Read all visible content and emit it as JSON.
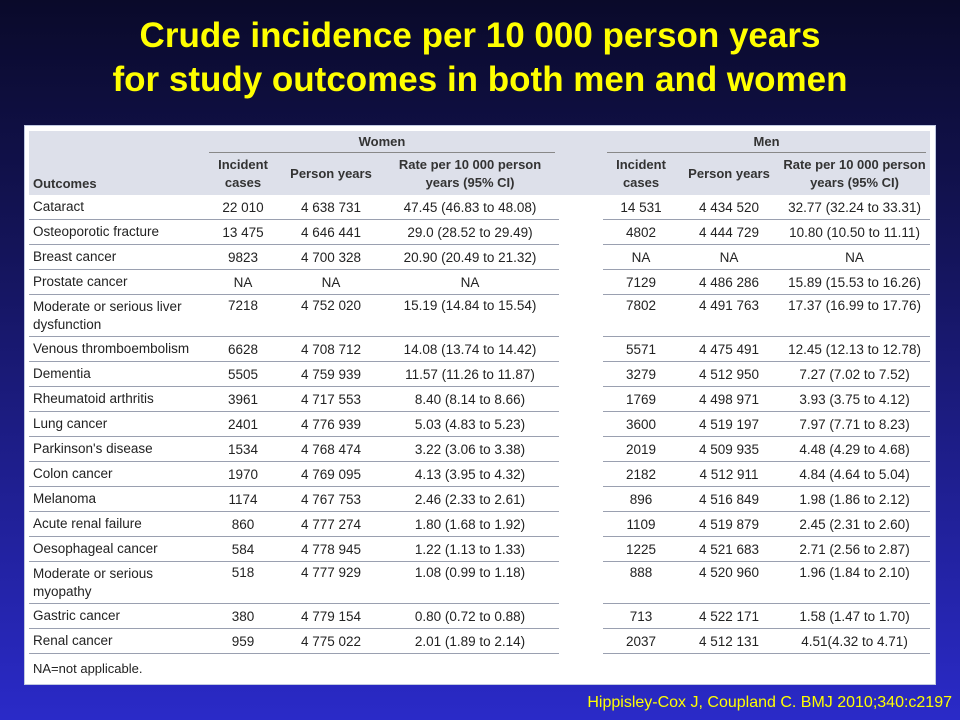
{
  "title_line1": "Crude incidence per 10 000 person years",
  "title_line2": "for study outcomes in both men and women",
  "table": {
    "group_women": "Women",
    "group_men": "Men",
    "col_outcomes": "Outcomes",
    "col_incident": "Incident cases",
    "col_person": "Person years",
    "col_rate": "Rate per 10 000 person years (95% CI)",
    "col_rate_men": "Rate per 10 000 person years (95% CI)",
    "rows": [
      {
        "outcome": "Cataract",
        "w_cases": "22 010",
        "w_py": "4 638 731",
        "w_rate": "47.45 (46.83 to 48.08)",
        "m_cases": "14 531",
        "m_py": "4 434 520",
        "m_rate": "32.77 (32.24 to 33.31)"
      },
      {
        "outcome": "Osteoporotic fracture",
        "w_cases": "13 475",
        "w_py": "4 646 441",
        "w_rate": "29.0 (28.52 to 29.49)",
        "m_cases": "4802",
        "m_py": "4 444 729",
        "m_rate": "10.80 (10.50 to 11.11)"
      },
      {
        "outcome": "Breast cancer",
        "w_cases": "9823",
        "w_py": "4 700 328",
        "w_rate": "20.90 (20.49 to 21.32)",
        "m_cases": "NA",
        "m_py": "NA",
        "m_rate": "NA"
      },
      {
        "outcome": "Prostate cancer",
        "w_cases": "NA",
        "w_py": "NA",
        "w_rate": "NA",
        "m_cases": "7129",
        "m_py": "4 486 286",
        "m_rate": "15.89 (15.53 to 16.26)"
      },
      {
        "outcome": "Moderate or serious liver dysfunction",
        "w_cases": "7218",
        "w_py": "4 752 020",
        "w_rate": "15.19 (14.84 to 15.54)",
        "m_cases": "7802",
        "m_py": "4 491 763",
        "m_rate": "17.37 (16.99 to 17.76)"
      },
      {
        "outcome": "Venous thromboembolism",
        "w_cases": "6628",
        "w_py": "4 708 712",
        "w_rate": "14.08 (13.74 to 14.42)",
        "m_cases": "5571",
        "m_py": "4 475 491",
        "m_rate": "12.45 (12.13 to 12.78)"
      },
      {
        "outcome": "Dementia",
        "w_cases": "5505",
        "w_py": "4 759 939",
        "w_rate": "11.57 (11.26 to 11.87)",
        "m_cases": "3279",
        "m_py": "4 512 950",
        "m_rate": "7.27 (7.02 to 7.52)"
      },
      {
        "outcome": "Rheumatoid arthritis",
        "w_cases": "3961",
        "w_py": "4 717 553",
        "w_rate": "8.40 (8.14 to 8.66)",
        "m_cases": "1769",
        "m_py": "4 498 971",
        "m_rate": "3.93 (3.75 to 4.12)"
      },
      {
        "outcome": "Lung cancer",
        "w_cases": "2401",
        "w_py": "4 776 939",
        "w_rate": "5.03 (4.83 to 5.23)",
        "m_cases": "3600",
        "m_py": "4 519 197",
        "m_rate": "7.97 (7.71 to 8.23)"
      },
      {
        "outcome": "Parkinson's disease",
        "w_cases": "1534",
        "w_py": "4 768 474",
        "w_rate": "3.22 (3.06 to 3.38)",
        "m_cases": "2019",
        "m_py": "4 509 935",
        "m_rate": "4.48 (4.29 to 4.68)"
      },
      {
        "outcome": "Colon cancer",
        "w_cases": "1970",
        "w_py": "4 769 095",
        "w_rate": "4.13 (3.95 to 4.32)",
        "m_cases": "2182",
        "m_py": "4 512 911",
        "m_rate": "4.84 (4.64 to 5.04)"
      },
      {
        "outcome": "Melanoma",
        "w_cases": "1174",
        "w_py": "4 767 753",
        "w_rate": "2.46 (2.33 to 2.61)",
        "m_cases": "896",
        "m_py": "4 516 849",
        "m_rate": "1.98 (1.86 to 2.12)"
      },
      {
        "outcome": "Acute renal failure",
        "w_cases": "860",
        "w_py": "4 777 274",
        "w_rate": "1.80 (1.68 to 1.92)",
        "m_cases": "1109",
        "m_py": "4 519 879",
        "m_rate": "2.45 (2.31 to 2.60)"
      },
      {
        "outcome": "Oesophageal cancer",
        "w_cases": "584",
        "w_py": "4 778 945",
        "w_rate": "1.22 (1.13 to 1.33)",
        "m_cases": "1225",
        "m_py": "4 521 683",
        "m_rate": "2.71 (2.56 to 2.87)"
      },
      {
        "outcome": "Moderate or serious myopathy",
        "w_cases": "518",
        "w_py": "4 777 929",
        "w_rate": "1.08 (0.99 to 1.18)",
        "m_cases": "888",
        "m_py": "4 520 960",
        "m_rate": "1.96 (1.84 to 2.10)"
      },
      {
        "outcome": "Gastric cancer",
        "w_cases": "380",
        "w_py": "4 779 154",
        "w_rate": "0.80 (0.72 to 0.88)",
        "m_cases": "713",
        "m_py": "4 522 171",
        "m_rate": "1.58 (1.47 to 1.70)"
      },
      {
        "outcome": "Renal cancer",
        "w_cases": "959",
        "w_py": "4 775 022",
        "w_rate": "2.01 (1.89 to 2.14)",
        "m_cases": "2037",
        "m_py": "4 512 131",
        "m_rate": "4.51(4.32 to 4.71)"
      }
    ],
    "footnote": "NA=not applicable."
  },
  "citation": "Hippisley-Cox J, Coupland C.   BMJ 2010;340:c2197",
  "colors": {
    "title": "#ffff00",
    "background_top": "#0a0a2a",
    "background_bottom": "#2a2ac8",
    "header_bg": "#dde0ea"
  }
}
